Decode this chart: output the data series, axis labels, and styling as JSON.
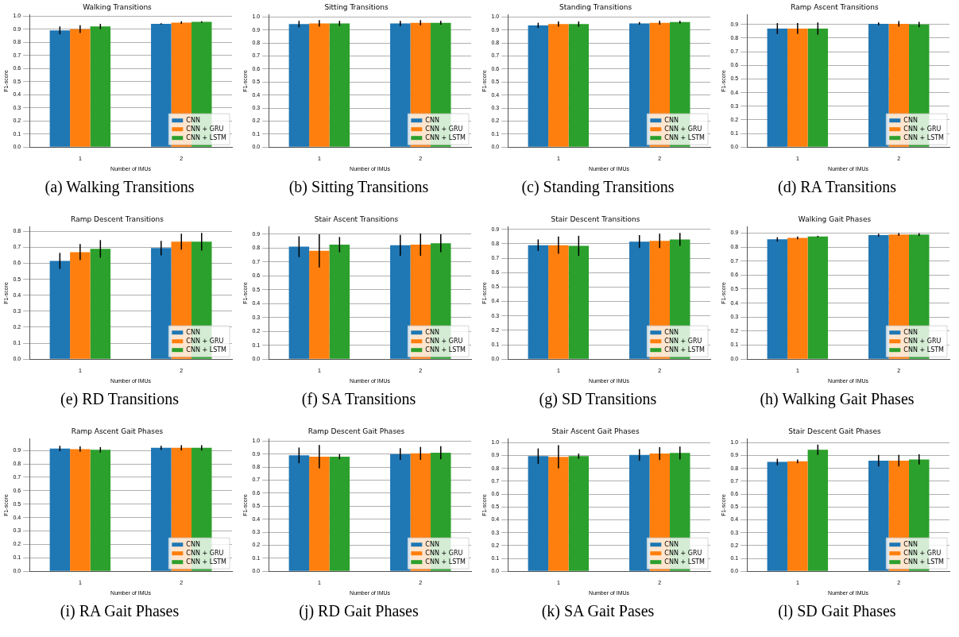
{
  "chart_data": [
    {
      "type": "bar",
      "title": "Walking Transitions",
      "xlabel": "Number of IMUs",
      "ylabel": "F1-score",
      "categories": [
        "1",
        "2"
      ],
      "legend": "bottom right",
      "grid": "y",
      "ylim": [
        0,
        1.008
      ],
      "yticks": [
        {
          "value": 0,
          "label": "0.0"
        },
        {
          "value": 0.1,
          "label": "0.1"
        },
        {
          "value": 0.2,
          "label": "0.2"
        },
        {
          "value": 0.3,
          "label": "0.3"
        },
        {
          "value": 0.4,
          "label": "0.4"
        },
        {
          "value": 0.5,
          "label": "0.5"
        },
        {
          "value": 0.6,
          "label": "0.6"
        },
        {
          "value": 0.7,
          "label": "0.7"
        },
        {
          "value": 0.8,
          "label": "0.8"
        },
        {
          "value": 0.9,
          "label": "0.9"
        },
        {
          "value": 1,
          "label": "1.0"
        }
      ],
      "annotations": [
        "(a) Walking Transitions"
      ],
      "series": [
        {
          "name": "CNN",
          "color": "#1f77b4",
          "values": [
            0.89,
            0.94
          ],
          "errors": [
            0.03,
            0.005
          ]
        },
        {
          "name": "CNN + GRU",
          "color": "#ff7f0e",
          "values": [
            0.9,
            0.95
          ],
          "errors": [
            0.03,
            0.01
          ]
        },
        {
          "name": "CNN + LSTM",
          "color": "#2ca02c",
          "values": [
            0.92,
            0.955
          ],
          "errors": [
            0.02,
            0.005
          ]
        }
      ]
    },
    {
      "type": "bar",
      "title": "Sitting Transitions",
      "xlabel": "Number of IMUs",
      "ylabel": "F1-score",
      "categories": [
        "1",
        "2"
      ],
      "legend": "bottom right",
      "grid": "y",
      "ylim": [
        0,
        1.015
      ],
      "yticks": [
        {
          "value": 0,
          "label": "0.0"
        },
        {
          "value": 0.1,
          "label": "0.1"
        },
        {
          "value": 0.2,
          "label": "0.2"
        },
        {
          "value": 0.3,
          "label": "0.3"
        },
        {
          "value": 0.4,
          "label": "0.4"
        },
        {
          "value": 0.5,
          "label": "0.5"
        },
        {
          "value": 0.6,
          "label": "0.6"
        },
        {
          "value": 0.7,
          "label": "0.7"
        },
        {
          "value": 0.8,
          "label": "0.8"
        },
        {
          "value": 0.9,
          "label": "0.9"
        },
        {
          "value": 1,
          "label": "1.0"
        }
      ],
      "annotations": [
        "(b) Sitting Transitions"
      ],
      "series": [
        {
          "name": "CNN",
          "color": "#1f77b4",
          "values": [
            0.945,
            0.95
          ],
          "errors": [
            0.025,
            0.02
          ]
        },
        {
          "name": "CNN + GRU",
          "color": "#ff7f0e",
          "values": [
            0.95,
            0.955
          ],
          "errors": [
            0.025,
            0.02
          ]
        },
        {
          "name": "CNN + LSTM",
          "color": "#2ca02c",
          "values": [
            0.95,
            0.955
          ],
          "errors": [
            0.02,
            0.015
          ]
        }
      ]
    },
    {
      "type": "bar",
      "title": "Standing Transitions",
      "xlabel": "Number of IMUs",
      "ylabel": "F1-score",
      "categories": [
        "1",
        "2"
      ],
      "legend": "bottom right",
      "grid": "y",
      "ylim": [
        0,
        1.015
      ],
      "yticks": [
        {
          "value": 0,
          "label": "0.0"
        },
        {
          "value": 0.1,
          "label": "0.1"
        },
        {
          "value": 0.2,
          "label": "0.2"
        },
        {
          "value": 0.3,
          "label": "0.3"
        },
        {
          "value": 0.4,
          "label": "0.4"
        },
        {
          "value": 0.5,
          "label": "0.5"
        },
        {
          "value": 0.6,
          "label": "0.6"
        },
        {
          "value": 0.7,
          "label": "0.7"
        },
        {
          "value": 0.8,
          "label": "0.8"
        },
        {
          "value": 0.9,
          "label": "0.9"
        },
        {
          "value": 1,
          "label": "1.0"
        }
      ],
      "annotations": [
        "(c) Standing Transitions"
      ],
      "series": [
        {
          "name": "CNN",
          "color": "#1f77b4",
          "values": [
            0.935,
            0.95
          ],
          "errors": [
            0.02,
            0.01
          ]
        },
        {
          "name": "CNN + GRU",
          "color": "#ff7f0e",
          "values": [
            0.945,
            0.955
          ],
          "errors": [
            0.02,
            0.015
          ]
        },
        {
          "name": "CNN + LSTM",
          "color": "#2ca02c",
          "values": [
            0.945,
            0.96
          ],
          "errors": [
            0.02,
            0.01
          ]
        }
      ]
    },
    {
      "type": "bar",
      "title": "Ramp Ascent Transitions",
      "xlabel": "Number of IMUs",
      "ylabel": "F1-score",
      "categories": [
        "1",
        "2"
      ],
      "legend": "bottom right",
      "grid": "y",
      "ylim": [
        0,
        0.97
      ],
      "yticks": [
        {
          "value": 0,
          "label": "0.0"
        },
        {
          "value": 0.1,
          "label": "0.1"
        },
        {
          "value": 0.2,
          "label": "0.2"
        },
        {
          "value": 0.3,
          "label": "0.3"
        },
        {
          "value": 0.4,
          "label": "0.4"
        },
        {
          "value": 0.5,
          "label": "0.5"
        },
        {
          "value": 0.6,
          "label": "0.6"
        },
        {
          "value": 0.7,
          "label": "0.7"
        },
        {
          "value": 0.8,
          "label": "0.8"
        },
        {
          "value": 0.9,
          "label": "0.9"
        }
      ],
      "annotations": [
        "(d) RA Transitions"
      ],
      "series": [
        {
          "name": "CNN",
          "color": "#1f77b4",
          "values": [
            0.87,
            0.905
          ],
          "errors": [
            0.04,
            0.01
          ]
        },
        {
          "name": "CNN + GRU",
          "color": "#ff7f0e",
          "values": [
            0.87,
            0.905
          ],
          "errors": [
            0.04,
            0.02
          ]
        },
        {
          "name": "CNN + LSTM",
          "color": "#2ca02c",
          "values": [
            0.87,
            0.9
          ],
          "errors": [
            0.045,
            0.02
          ]
        }
      ]
    },
    {
      "type": "bar",
      "title": "Ramp Descent Transitions",
      "xlabel": "Number of IMUs",
      "ylabel": "F1-score",
      "categories": [
        "1",
        "2"
      ],
      "legend": "bottom right",
      "grid": "y",
      "ylim": [
        0,
        0.827
      ],
      "yticks": [
        {
          "value": 0,
          "label": "0.0"
        },
        {
          "value": 0.1,
          "label": "0.1"
        },
        {
          "value": 0.2,
          "label": "0.2"
        },
        {
          "value": 0.3,
          "label": "0.3"
        },
        {
          "value": 0.4,
          "label": "0.4"
        },
        {
          "value": 0.5,
          "label": "0.5"
        },
        {
          "value": 0.6,
          "label": "0.6"
        },
        {
          "value": 0.7,
          "label": "0.7"
        },
        {
          "value": 0.8,
          "label": "0.8"
        }
      ],
      "annotations": [
        "(e) RD Transitions"
      ],
      "series": [
        {
          "name": "CNN",
          "color": "#1f77b4",
          "values": [
            0.615,
            0.695
          ],
          "errors": [
            0.05,
            0.045
          ]
        },
        {
          "name": "CNN + GRU",
          "color": "#ff7f0e",
          "values": [
            0.67,
            0.735
          ],
          "errors": [
            0.05,
            0.05
          ]
        },
        {
          "name": "CNN + LSTM",
          "color": "#2ca02c",
          "values": [
            0.69,
            0.735
          ],
          "errors": [
            0.055,
            0.055
          ]
        }
      ]
    },
    {
      "type": "bar",
      "title": "Stair Ascent Transitions",
      "xlabel": "Number of IMUs",
      "ylabel": "F1-score",
      "categories": [
        "1",
        "2"
      ],
      "legend": "bottom right",
      "grid": "y",
      "ylim": [
        0,
        0.952
      ],
      "yticks": [
        {
          "value": 0,
          "label": "0.0"
        },
        {
          "value": 0.1,
          "label": "0.1"
        },
        {
          "value": 0.2,
          "label": "0.2"
        },
        {
          "value": 0.3,
          "label": "0.3"
        },
        {
          "value": 0.4,
          "label": "0.4"
        },
        {
          "value": 0.5,
          "label": "0.5"
        },
        {
          "value": 0.6,
          "label": "0.6"
        },
        {
          "value": 0.7,
          "label": "0.7"
        },
        {
          "value": 0.8,
          "label": "0.8"
        },
        {
          "value": 0.9,
          "label": "0.9"
        }
      ],
      "annotations": [
        "(f) SA Transitions"
      ],
      "series": [
        {
          "name": "CNN",
          "color": "#1f77b4",
          "values": [
            0.81,
            0.82
          ],
          "errors": [
            0.075,
            0.075
          ]
        },
        {
          "name": "CNN + GRU",
          "color": "#ff7f0e",
          "values": [
            0.78,
            0.825
          ],
          "errors": [
            0.12,
            0.08
          ]
        },
        {
          "name": "CNN + LSTM",
          "color": "#2ca02c",
          "values": [
            0.825,
            0.835
          ],
          "errors": [
            0.055,
            0.065
          ]
        }
      ]
    },
    {
      "type": "bar",
      "title": "Stair Descent Transitions",
      "xlabel": "Number of IMUs",
      "ylabel": "F1-score",
      "categories": [
        "1",
        "2"
      ],
      "legend": "bottom right",
      "grid": "y",
      "ylim": [
        0,
        0.916
      ],
      "yticks": [
        {
          "value": 0,
          "label": "0.0"
        },
        {
          "value": 0.1,
          "label": "0.1"
        },
        {
          "value": 0.2,
          "label": "0.2"
        },
        {
          "value": 0.3,
          "label": "0.3"
        },
        {
          "value": 0.4,
          "label": "0.4"
        },
        {
          "value": 0.5,
          "label": "0.5"
        },
        {
          "value": 0.6,
          "label": "0.6"
        },
        {
          "value": 0.7,
          "label": "0.7"
        },
        {
          "value": 0.8,
          "label": "0.8"
        },
        {
          "value": 0.9,
          "label": "0.9"
        }
      ],
      "annotations": [
        "(g) SD Transitions"
      ],
      "series": [
        {
          "name": "CNN",
          "color": "#1f77b4",
          "values": [
            0.79,
            0.815
          ],
          "errors": [
            0.04,
            0.045
          ]
        },
        {
          "name": "CNN + GRU",
          "color": "#ff7f0e",
          "values": [
            0.79,
            0.82
          ],
          "errors": [
            0.06,
            0.05
          ]
        },
        {
          "name": "CNN + LSTM",
          "color": "#2ca02c",
          "values": [
            0.785,
            0.83
          ],
          "errors": [
            0.07,
            0.045
          ]
        }
      ]
    },
    {
      "type": "bar",
      "title": "Walking Gait Phases",
      "xlabel": "Number of IMUs",
      "ylabel": "F1-score",
      "categories": [
        "1",
        "2"
      ],
      "legend": "bottom right",
      "grid": "y",
      "ylim": [
        0,
        0.943
      ],
      "yticks": [
        {
          "value": 0,
          "label": "0.0"
        },
        {
          "value": 0.1,
          "label": "0.1"
        },
        {
          "value": 0.2,
          "label": "0.2"
        },
        {
          "value": 0.3,
          "label": "0.3"
        },
        {
          "value": 0.4,
          "label": "0.4"
        },
        {
          "value": 0.5,
          "label": "0.5"
        },
        {
          "value": 0.6,
          "label": "0.6"
        },
        {
          "value": 0.7,
          "label": "0.7"
        },
        {
          "value": 0.8,
          "label": "0.8"
        },
        {
          "value": 0.9,
          "label": "0.9"
        }
      ],
      "annotations": [
        "(h) Walking Gait Phases"
      ],
      "series": [
        {
          "name": "CNN",
          "color": "#1f77b4",
          "values": [
            0.855,
            0.885
          ],
          "errors": [
            0.015,
            0.01
          ]
        },
        {
          "name": "CNN + GRU",
          "color": "#ff7f0e",
          "values": [
            0.865,
            0.89
          ],
          "errors": [
            0.01,
            0.01
          ]
        },
        {
          "name": "CNN + LSTM",
          "color": "#2ca02c",
          "values": [
            0.875,
            0.89
          ],
          "errors": [
            0.005,
            0.01
          ]
        }
      ]
    },
    {
      "type": "bar",
      "title": "Ramp Ascent Gait Phases",
      "xlabel": "Number of IMUs",
      "ylabel": "F1-score",
      "categories": [
        "1",
        "2"
      ],
      "legend": "bottom right",
      "grid": "y",
      "ylim": [
        0,
        0.985
      ],
      "yticks": [
        {
          "value": 0,
          "label": "0.0"
        },
        {
          "value": 0.1,
          "label": "0.1"
        },
        {
          "value": 0.2,
          "label": "0.2"
        },
        {
          "value": 0.3,
          "label": "0.3"
        },
        {
          "value": 0.4,
          "label": "0.4"
        },
        {
          "value": 0.5,
          "label": "0.5"
        },
        {
          "value": 0.6,
          "label": "0.6"
        },
        {
          "value": 0.7,
          "label": "0.7"
        },
        {
          "value": 0.8,
          "label": "0.8"
        },
        {
          "value": 0.9,
          "label": "0.9"
        }
      ],
      "annotations": [
        "(i) RA Gait Phases"
      ],
      "series": [
        {
          "name": "CNN",
          "color": "#1f77b4",
          "values": [
            0.915,
            0.92
          ],
          "errors": [
            0.02,
            0.015
          ]
        },
        {
          "name": "CNN + GRU",
          "color": "#ff7f0e",
          "values": [
            0.91,
            0.92
          ],
          "errors": [
            0.02,
            0.02
          ]
        },
        {
          "name": "CNN + LSTM",
          "color": "#2ca02c",
          "values": [
            0.905,
            0.92
          ],
          "errors": [
            0.02,
            0.02
          ]
        }
      ]
    },
    {
      "type": "bar",
      "title": "Ramp Descent Gait Phases",
      "xlabel": "Number of IMUs",
      "ylabel": "F1-score",
      "categories": [
        "1",
        "2"
      ],
      "legend": "bottom right",
      "grid": "y",
      "ylim": [
        0,
        1.015
      ],
      "yticks": [
        {
          "value": 0,
          "label": "0.0"
        },
        {
          "value": 0.1,
          "label": "0.1"
        },
        {
          "value": 0.2,
          "label": "0.2"
        },
        {
          "value": 0.3,
          "label": "0.3"
        },
        {
          "value": 0.4,
          "label": "0.4"
        },
        {
          "value": 0.5,
          "label": "0.5"
        },
        {
          "value": 0.6,
          "label": "0.6"
        },
        {
          "value": 0.7,
          "label": "0.7"
        },
        {
          "value": 0.8,
          "label": "0.8"
        },
        {
          "value": 0.9,
          "label": "0.9"
        },
        {
          "value": 1,
          "label": "1.0"
        }
      ],
      "annotations": [
        "(j) RD Gait Phases"
      ],
      "series": [
        {
          "name": "CNN",
          "color": "#1f77b4",
          "values": [
            0.89,
            0.9
          ],
          "errors": [
            0.06,
            0.045
          ]
        },
        {
          "name": "CNN + GRU",
          "color": "#ff7f0e",
          "values": [
            0.88,
            0.905
          ],
          "errors": [
            0.09,
            0.05
          ]
        },
        {
          "name": "CNN + LSTM",
          "color": "#2ca02c",
          "values": [
            0.88,
            0.91
          ],
          "errors": [
            0.02,
            0.05
          ]
        }
      ]
    },
    {
      "type": "bar",
      "title": "Stair Ascent Gait Phases",
      "xlabel": "Number of IMUs",
      "ylabel": "F1-score",
      "categories": [
        "1",
        "2"
      ],
      "legend": "bottom right",
      "grid": "y",
      "ylim": [
        0,
        1.028
      ],
      "yticks": [
        {
          "value": 0,
          "label": "0.0"
        },
        {
          "value": 0.1,
          "label": "0.1"
        },
        {
          "value": 0.2,
          "label": "0.2"
        },
        {
          "value": 0.3,
          "label": "0.3"
        },
        {
          "value": 0.4,
          "label": "0.4"
        },
        {
          "value": 0.5,
          "label": "0.5"
        },
        {
          "value": 0.6,
          "label": "0.6"
        },
        {
          "value": 0.7,
          "label": "0.7"
        },
        {
          "value": 0.8,
          "label": "0.8"
        },
        {
          "value": 0.9,
          "label": "0.9"
        },
        {
          "value": 1,
          "label": "1.0"
        }
      ],
      "annotations": [
        "(k) SA Gait Pases"
      ],
      "series": [
        {
          "name": "CNN",
          "color": "#1f77b4",
          "values": [
            0.895,
            0.905
          ],
          "errors": [
            0.06,
            0.045
          ]
        },
        {
          "name": "CNN + GRU",
          "color": "#ff7f0e",
          "values": [
            0.89,
            0.915
          ],
          "errors": [
            0.09,
            0.05
          ]
        },
        {
          "name": "CNN + LSTM",
          "color": "#2ca02c",
          "values": [
            0.895,
            0.92
          ],
          "errors": [
            0.02,
            0.05
          ]
        }
      ]
    },
    {
      "type": "bar",
      "title": "Stair Descent Gait Phases",
      "xlabel": "Number of IMUs",
      "ylabel": "F1-score",
      "categories": [
        "1",
        "2"
      ],
      "legend": "bottom right",
      "grid": "y",
      "ylim": [
        0,
        1.028
      ],
      "yticks": [
        {
          "value": 0,
          "label": "0.0"
        },
        {
          "value": 0.1,
          "label": "0.1"
        },
        {
          "value": 0.2,
          "label": "0.2"
        },
        {
          "value": 0.3,
          "label": "0.3"
        },
        {
          "value": 0.4,
          "label": "0.4"
        },
        {
          "value": 0.5,
          "label": "0.5"
        },
        {
          "value": 0.6,
          "label": "0.6"
        },
        {
          "value": 0.7,
          "label": "0.7"
        },
        {
          "value": 0.8,
          "label": "0.8"
        },
        {
          "value": 0.9,
          "label": "0.9"
        },
        {
          "value": 1,
          "label": "1.0"
        }
      ],
      "annotations": [
        "(l) SD Gait Phases"
      ],
      "series": [
        {
          "name": "CNN",
          "color": "#1f77b4",
          "values": [
            0.85,
            0.86
          ],
          "errors": [
            0.025,
            0.045
          ]
        },
        {
          "name": "CNN + GRU",
          "color": "#ff7f0e",
          "values": [
            0.855,
            0.86
          ],
          "errors": [
            0.015,
            0.045
          ]
        },
        {
          "name": "CNN + LSTM",
          "color": "#2ca02c",
          "values": [
            0.945,
            0.87
          ],
          "errors": [
            0.04,
            0.04
          ]
        }
      ]
    }
  ]
}
